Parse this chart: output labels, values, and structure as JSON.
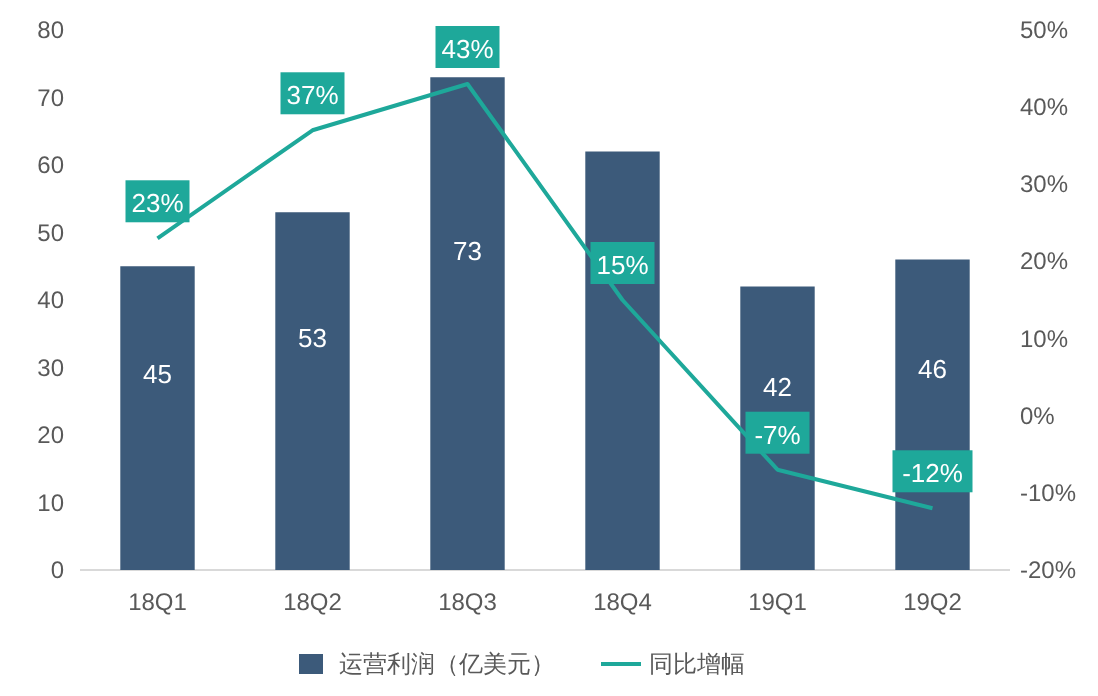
{
  "chart_data": {
    "type": "bar",
    "categories": [
      "18Q1",
      "18Q2",
      "18Q3",
      "18Q4",
      "19Q1",
      "19Q2"
    ],
    "series": [
      {
        "name": "运营利润（亿美元）",
        "color": "#3c5a7a",
        "values": [
          45,
          53,
          73,
          62,
          42,
          46
        ],
        "value_labels": [
          "45",
          "53",
          "73",
          null,
          "42",
          "46"
        ]
      },
      {
        "name": "同比增幅",
        "type": "line",
        "axis": "y2",
        "color": "#1ea89a",
        "values": [
          23,
          37,
          43,
          15,
          -7,
          -12
        ],
        "value_labels": [
          "23%",
          "37%",
          "43%",
          "15%",
          "-7%",
          "-12%"
        ]
      }
    ],
    "ylim": [
      0,
      80
    ],
    "yticks": [
      0,
      10,
      20,
      30,
      40,
      50,
      60,
      70,
      80
    ],
    "y2lim": [
      -20,
      50
    ],
    "y2ticks": [
      {
        "value": -20,
        "label": "-20%"
      },
      {
        "value": -10,
        "label": "-10%"
      },
      {
        "value": 0,
        "label": "0%"
      },
      {
        "value": 10,
        "label": "10%"
      },
      {
        "value": 20,
        "label": "20%"
      },
      {
        "value": 30,
        "label": "30%"
      },
      {
        "value": 40,
        "label": "40%"
      },
      {
        "value": 50,
        "label": "50%"
      }
    ],
    "grid": false,
    "legend": "bottom",
    "marker": "none",
    "line_style": "solid"
  }
}
